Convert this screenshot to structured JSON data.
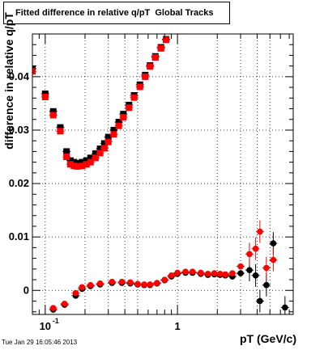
{
  "header": {
    "title": "Fitted difference in relative q/pT  Global Tracks"
  },
  "footer": {
    "timestamp": "Tue Jan 29 16:05:46 2013"
  },
  "chart_data": {
    "type": "scatter",
    "title": "Fitted difference in relative q/pT  Global Tracks",
    "xlabel": "pT (GeV/c)",
    "ylabel": "difference in relative q/pT",
    "xscale": "log",
    "xlim": [
      0.08,
      7.5
    ],
    "ylim": [
      -0.0045,
      0.048
    ],
    "x_tick_labels": [
      {
        "value": 0.1,
        "label": "10",
        "exponent": "-1"
      },
      {
        "value": 1,
        "label": "1",
        "exponent": ""
      }
    ],
    "y_tick_labels": [
      {
        "value": 0,
        "label": "0"
      },
      {
        "value": 0.01,
        "label": "0.01"
      },
      {
        "value": 0.02,
        "label": "0.02"
      },
      {
        "value": 0.03,
        "label": "0.03"
      },
      {
        "value": 0.04,
        "label": "0.04"
      }
    ],
    "grid": true,
    "series_colors": [
      "#000000",
      "#ff0000"
    ],
    "series": [
      {
        "color": "#000000",
        "marker": "square",
        "points": [
          [
            0.08,
            0.0415
          ],
          [
            0.1,
            0.0368
          ],
          [
            0.115,
            0.0335
          ],
          [
            0.13,
            0.0305
          ],
          [
            0.145,
            0.026
          ],
          [
            0.155,
            0.0243
          ],
          [
            0.165,
            0.024
          ],
          [
            0.175,
            0.0238
          ],
          [
            0.19,
            0.024
          ],
          [
            0.205,
            0.0243
          ],
          [
            0.22,
            0.0248
          ],
          [
            0.24,
            0.0256
          ],
          [
            0.26,
            0.0265
          ],
          [
            0.28,
            0.0275
          ],
          [
            0.3,
            0.0287
          ],
          [
            0.33,
            0.03
          ],
          [
            0.36,
            0.0315
          ],
          [
            0.39,
            0.033
          ],
          [
            0.43,
            0.0347
          ],
          [
            0.47,
            0.0365
          ],
          [
            0.52,
            0.0385
          ],
          [
            0.57,
            0.0403
          ],
          [
            0.62,
            0.0421
          ],
          [
            0.68,
            0.0438
          ],
          [
            0.75,
            0.0455
          ],
          [
            0.82,
            0.047
          ]
        ]
      },
      {
        "color": "#ff0000",
        "marker": "square",
        "points": [
          [
            0.08,
            0.041
          ],
          [
            0.1,
            0.0362
          ],
          [
            0.115,
            0.0328
          ],
          [
            0.13,
            0.0298
          ],
          [
            0.145,
            0.025
          ],
          [
            0.155,
            0.0236
          ],
          [
            0.165,
            0.0233
          ],
          [
            0.175,
            0.0232
          ],
          [
            0.19,
            0.0233
          ],
          [
            0.205,
            0.0236
          ],
          [
            0.22,
            0.024
          ],
          [
            0.24,
            0.0248
          ],
          [
            0.26,
            0.0257
          ],
          [
            0.28,
            0.0266
          ],
          [
            0.3,
            0.0278
          ],
          [
            0.33,
            0.0292
          ],
          [
            0.36,
            0.0308
          ],
          [
            0.39,
            0.0324
          ],
          [
            0.43,
            0.0342
          ],
          [
            0.47,
            0.0361
          ],
          [
            0.52,
            0.0381
          ],
          [
            0.57,
            0.04
          ],
          [
            0.62,
            0.0419
          ],
          [
            0.68,
            0.0436
          ],
          [
            0.75,
            0.0453
          ],
          [
            0.82,
            0.0469
          ]
        ]
      },
      {
        "color": "#000000",
        "marker": "circle",
        "points": [
          [
            0.115,
            -0.0036
          ],
          [
            0.14,
            -0.0027
          ],
          [
            0.17,
            -0.001
          ],
          [
            0.19,
            0.0003
          ],
          [
            0.22,
            0.0008
          ],
          [
            0.26,
            0.0011
          ],
          [
            0.32,
            0.0014
          ],
          [
            0.38,
            0.0014
          ],
          [
            0.44,
            0.0013
          ],
          [
            0.5,
            0.0011
          ],
          [
            0.56,
            0.001
          ],
          [
            0.62,
            0.001
          ],
          [
            0.7,
            0.0013
          ],
          [
            0.8,
            0.0019
          ],
          [
            0.9,
            0.0026
          ],
          [
            1.0,
            0.0031
          ],
          [
            1.15,
            0.0033
          ],
          [
            1.3,
            0.0033
          ],
          [
            1.5,
            0.0031
          ],
          [
            1.7,
            0.0029
          ],
          [
            1.9,
            0.003
          ],
          [
            2.1,
            0.0029
          ],
          [
            2.3,
            0.0028
          ],
          [
            2.6,
            0.0026
          ],
          [
            3.0,
            0.0032
          ],
          [
            3.5,
            0.0038
          ],
          [
            3.9,
            0.0028
          ],
          [
            4.2,
            -0.002
          ],
          [
            4.7,
            0.001
          ],
          [
            5.3,
            0.0088
          ],
          [
            6.5,
            -0.0032
          ]
        ]
      },
      {
        "color": "#ff0000",
        "marker": "circle",
        "points": [
          [
            0.115,
            -0.0033
          ],
          [
            0.14,
            -0.0025
          ],
          [
            0.17,
            -0.0005
          ],
          [
            0.19,
            0.0006
          ],
          [
            0.22,
            0.001
          ],
          [
            0.26,
            0.0013
          ],
          [
            0.32,
            0.0016
          ],
          [
            0.38,
            0.0016
          ],
          [
            0.44,
            0.0015
          ],
          [
            0.5,
            0.0012
          ],
          [
            0.56,
            0.0011
          ],
          [
            0.62,
            0.0011
          ],
          [
            0.7,
            0.0014
          ],
          [
            0.8,
            0.002
          ],
          [
            0.9,
            0.0028
          ],
          [
            1.0,
            0.0033
          ],
          [
            1.15,
            0.0035
          ],
          [
            1.3,
            0.0035
          ],
          [
            1.5,
            0.0033
          ],
          [
            1.7,
            0.0031
          ],
          [
            1.9,
            0.0032
          ],
          [
            2.1,
            0.0031
          ],
          [
            2.3,
            0.003
          ],
          [
            2.6,
            0.0032
          ],
          [
            3.0,
            0.0045
          ],
          [
            3.5,
            0.0068
          ],
          [
            3.9,
            0.0078
          ],
          [
            4.2,
            0.011
          ],
          [
            4.7,
            0.0042
          ],
          [
            5.3,
            0.0057
          ]
        ]
      }
    ]
  }
}
